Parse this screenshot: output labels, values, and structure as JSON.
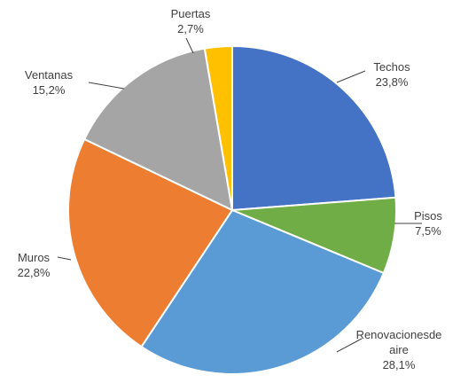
{
  "chart_data": {
    "type": "pie",
    "title": "",
    "slices": [
      {
        "label_lines": [
          "Techos"
        ],
        "value_label": "23,8%",
        "value": 23.8,
        "color": "#4472C4"
      },
      {
        "label_lines": [
          "Pisos"
        ],
        "value_label": "7,5%",
        "value": 7.5,
        "color": "#70AD47"
      },
      {
        "label_lines": [
          "Renovacionesde",
          "aire"
        ],
        "value_label": "28,1%",
        "value": 28.1,
        "color": "#5B9BD5"
      },
      {
        "label_lines": [
          "Muros"
        ],
        "value_label": "22,8%",
        "value": 22.8,
        "color": "#ED7D31"
      },
      {
        "label_lines": [
          "Ventanas"
        ],
        "value_label": "15,2%",
        "value": 15.2,
        "color": "#A5A5A5"
      },
      {
        "label_lines": [
          "Puertas"
        ],
        "value_label": "2,7%",
        "value": 2.7,
        "color": "#FFC000"
      }
    ],
    "start_angle_deg": 0,
    "direction": "clockwise",
    "legend": "none",
    "data_labels": "outside-with-leaders"
  }
}
